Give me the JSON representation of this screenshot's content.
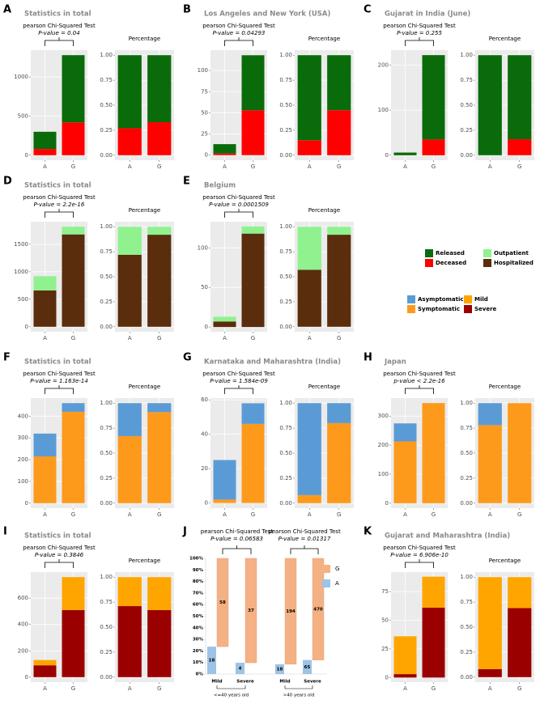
{
  "chart_data": [
    {
      "type": "bar",
      "panel": "A",
      "title": "Statistics in total",
      "test": "pearson Chi-Squared Test",
      "pvalue": "P-value = 0.04",
      "categories": [
        "A",
        "G"
      ],
      "series": [
        {
          "color": "#ff0000",
          "values": [
            80,
            420
          ]
        },
        {
          "color": "#0a6b0a",
          "values": [
            220,
            860
          ]
        }
      ],
      "ylim": [
        -64,
        1344
      ],
      "yticks": [
        0,
        500,
        1000
      ]
    },
    {
      "type": "bar",
      "title": "Percentage",
      "categories": [
        "A",
        "G"
      ],
      "series": [
        {
          "color": "#ff0000",
          "values": [
            0.27,
            0.33
          ]
        },
        {
          "color": "#0a6b0a",
          "values": [
            0.73,
            0.67
          ]
        }
      ],
      "ylim": [
        -0.05,
        1.05
      ],
      "yticks": [
        {
          "value": 0,
          "label": "0.00"
        },
        {
          "value": 0.25,
          "label": "0.25"
        },
        {
          "value": 0.5,
          "label": "0.50"
        },
        {
          "value": 0.75,
          "label": "0.75"
        },
        {
          "value": 1,
          "label": "1.00"
        }
      ]
    },
    {
      "type": "bar",
      "panel": "B",
      "title": "Los Angeles and New York (USA)",
      "test": "pearson Chi-Squared Test",
      "pvalue": "P-value = 0.04293",
      "categories": [
        "A",
        "G"
      ],
      "series": [
        {
          "color": "#ff0000",
          "values": [
            2,
            53
          ]
        },
        {
          "color": "#0a6b0a",
          "values": [
            11,
            65
          ]
        }
      ],
      "ylim": [
        -6,
        124
      ],
      "yticks": [
        0,
        25,
        50,
        75,
        100
      ]
    },
    {
      "type": "bar",
      "title": "Percentage",
      "categories": [
        "A",
        "G"
      ],
      "series": [
        {
          "color": "#ff0000",
          "values": [
            0.15,
            0.45
          ]
        },
        {
          "color": "#0a6b0a",
          "values": [
            0.85,
            0.55
          ]
        }
      ],
      "ylim": [
        -0.05,
        1.05
      ],
      "yticks": [
        {
          "value": 0,
          "label": "0.00"
        },
        {
          "value": 0.25,
          "label": "0.25"
        },
        {
          "value": 0.5,
          "label": "0.50"
        },
        {
          "value": 0.75,
          "label": "0.75"
        },
        {
          "value": 1,
          "label": "1.00"
        }
      ]
    },
    {
      "type": "bar",
      "panel": "C",
      "title": "Gujarat in India (June)",
      "test": "pearson Chi-Squared Test",
      "pvalue": "P-value = 0.255",
      "categories": [
        "A",
        "G"
      ],
      "series": [
        {
          "color": "#ff0000",
          "values": [
            0,
            35
          ]
        },
        {
          "color": "#0a6b0a",
          "values": [
            6,
            187
          ]
        }
      ],
      "ylim": [
        -11,
        233
      ],
      "yticks": [
        0,
        100,
        200
      ]
    },
    {
      "type": "bar",
      "title": "Percentage",
      "categories": [
        "A",
        "G"
      ],
      "series": [
        {
          "color": "#ff0000",
          "values": [
            0,
            0.16
          ]
        },
        {
          "color": "#0a6b0a",
          "values": [
            1,
            0.84
          ]
        }
      ],
      "ylim": [
        -0.05,
        1.05
      ],
      "yticks": [
        {
          "value": 0,
          "label": "0.00"
        },
        {
          "value": 0.25,
          "label": "0.25"
        },
        {
          "value": 0.5,
          "label": "0.50"
        },
        {
          "value": 0.75,
          "label": "0.75"
        },
        {
          "value": 1,
          "label": "1.00"
        }
      ]
    },
    {
      "type": "bar",
      "panel": "D",
      "title": "Statistics in total",
      "test": "pearson Chi-Squared Test",
      "pvalue": "P-value = 2.2e-16",
      "categories": [
        "A",
        "G"
      ],
      "series": [
        {
          "color": "#5a2d0c",
          "values": [
            660,
            1680
          ]
        },
        {
          "color": "#8ff28f",
          "values": [
            260,
            140
          ]
        }
      ],
      "ylim": [
        -91,
        1911
      ],
      "yticks": [
        0,
        500,
        1000,
        1500
      ]
    },
    {
      "type": "bar",
      "title": "Percentage",
      "categories": [
        "A",
        "G"
      ],
      "series": [
        {
          "color": "#5a2d0c",
          "values": [
            0.72,
            0.92
          ]
        },
        {
          "color": "#8ff28f",
          "values": [
            0.28,
            0.08
          ]
        }
      ],
      "ylim": [
        -0.05,
        1.05
      ],
      "yticks": [
        {
          "value": 0,
          "label": "0.00"
        },
        {
          "value": 0.25,
          "label": "0.25"
        },
        {
          "value": 0.5,
          "label": "0.50"
        },
        {
          "value": 0.75,
          "label": "0.75"
        },
        {
          "value": 1,
          "label": "1.00"
        }
      ]
    },
    {
      "type": "bar",
      "panel": "E",
      "title": "Belgium",
      "test": "pearson Chi-Squared Test",
      "pvalue": "P-value = 0.0001509",
      "categories": [
        "A",
        "G"
      ],
      "series": [
        {
          "color": "#5a2d0c",
          "values": [
            7,
            118
          ]
        },
        {
          "color": "#8ff28f",
          "values": [
            6,
            9
          ]
        }
      ],
      "ylim": [
        -6,
        133
      ],
      "yticks": [
        0,
        50,
        100
      ]
    },
    {
      "type": "bar",
      "title": "Percentage",
      "categories": [
        "A",
        "G"
      ],
      "series": [
        {
          "color": "#5a2d0c",
          "values": [
            0.57,
            0.92
          ]
        },
        {
          "color": "#8ff28f",
          "values": [
            0.43,
            0.08
          ]
        }
      ],
      "ylim": [
        -0.05,
        1.05
      ],
      "yticks": [
        {
          "value": 0,
          "label": "0.00"
        },
        {
          "value": 0.25,
          "label": "0.25"
        },
        {
          "value": 0.5,
          "label": "0.50"
        },
        {
          "value": 0.75,
          "label": "0.75"
        },
        {
          "value": 1,
          "label": "1.00"
        }
      ]
    },
    {
      "type": "bar",
      "panel": "F",
      "title": "Statistics in total",
      "test": "pearson Chi-Squared Test",
      "pvalue": "P-value = 1.163e-14",
      "categories": [
        "A",
        "G"
      ],
      "series": [
        {
          "color": "#fd9a1c",
          "values": [
            215,
            420
          ]
        },
        {
          "color": "#5b9bd5",
          "values": [
            105,
            40
          ]
        }
      ],
      "ylim": [
        -23,
        483
      ],
      "yticks": [
        0,
        100,
        200,
        300,
        400
      ]
    },
    {
      "type": "bar",
      "title": "Percentage",
      "categories": [
        "A",
        "G"
      ],
      "series": [
        {
          "color": "#fd9a1c",
          "values": [
            0.67,
            0.91
          ]
        },
        {
          "color": "#5b9bd5",
          "values": [
            0.33,
            0.09
          ]
        }
      ],
      "ylim": [
        -0.05,
        1.05
      ],
      "yticks": [
        {
          "value": 0,
          "label": "0.00"
        },
        {
          "value": 0.25,
          "label": "0.25"
        },
        {
          "value": 0.5,
          "label": "0.50"
        },
        {
          "value": 0.75,
          "label": "0.75"
        },
        {
          "value": 1,
          "label": "1.00"
        }
      ]
    },
    {
      "type": "bar",
      "panel": "G",
      "title": "Karnataka and Maharashtra (India)",
      "test": "pearson Chi-Squared Test",
      "pvalue": "P-value = 1.584e-09",
      "categories": [
        "A",
        "G"
      ],
      "series": [
        {
          "color": "#fd9a1c",
          "values": [
            2,
            46
          ]
        },
        {
          "color": "#5b9bd5",
          "values": [
            23,
            12
          ]
        }
      ],
      "ylim": [
        -3,
        61
      ],
      "yticks": [
        0,
        20,
        40,
        60
      ]
    },
    {
      "type": "bar",
      "title": "Percentage",
      "categories": [
        "A",
        "G"
      ],
      "series": [
        {
          "color": "#fd9a1c",
          "values": [
            0.08,
            0.8
          ]
        },
        {
          "color": "#5b9bd5",
          "values": [
            0.92,
            0.2
          ]
        }
      ],
      "ylim": [
        -0.05,
        1.05
      ],
      "yticks": [
        {
          "value": 0,
          "label": "0.00"
        },
        {
          "value": 0.25,
          "label": "0.25"
        },
        {
          "value": 0.5,
          "label": "0.50"
        },
        {
          "value": 0.75,
          "label": "0.75"
        },
        {
          "value": 1,
          "label": "1.00"
        }
      ]
    },
    {
      "type": "bar",
      "panel": "H",
      "title": "Japan",
      "test": "pearson Chi-Squared Test",
      "pvalue": "p-value < 2.2e-16",
      "categories": [
        "A",
        "G"
      ],
      "series": [
        {
          "color": "#fd9a1c",
          "values": [
            213,
            345
          ]
        },
        {
          "color": "#5b9bd5",
          "values": [
            62,
            0
          ]
        }
      ],
      "ylim": [
        -17,
        362
      ],
      "yticks": [
        0,
        100,
        200,
        300
      ]
    },
    {
      "type": "bar",
      "title": "Percentage",
      "categories": [
        "A",
        "G"
      ],
      "series": [
        {
          "color": "#fd9a1c",
          "values": [
            0.78,
            1
          ]
        },
        {
          "color": "#5b9bd5",
          "values": [
            0.22,
            0
          ]
        }
      ],
      "ylim": [
        -0.05,
        1.05
      ],
      "yticks": [
        {
          "value": 0,
          "label": "0.00"
        },
        {
          "value": 0.25,
          "label": "0.25"
        },
        {
          "value": 0.5,
          "label": "0.50"
        },
        {
          "value": 0.75,
          "label": "0.75"
        },
        {
          "value": 1,
          "label": "1.00"
        }
      ]
    },
    {
      "type": "bar",
      "panel": "I",
      "title": "Statistics in total",
      "test": "pearson Chi-Squared Test",
      "pvalue": "P-value = 0.3846",
      "categories": [
        "A",
        "G"
      ],
      "series": [
        {
          "color": "#9b0000",
          "values": [
            90,
            510
          ]
        },
        {
          "color": "#ffa500",
          "values": [
            40,
            250
          ]
        }
      ],
      "ylim": [
        -38,
        798
      ],
      "yticks": [
        0,
        200,
        400,
        600
      ]
    },
    {
      "type": "bar",
      "title": "Percentage",
      "categories": [
        "A",
        "G"
      ],
      "series": [
        {
          "color": "#9b0000",
          "values": [
            0.71,
            0.67
          ]
        },
        {
          "color": "#ffa500",
          "values": [
            0.29,
            0.33
          ]
        }
      ],
      "ylim": [
        -0.05,
        1.05
      ],
      "yticks": [
        {
          "value": 0,
          "label": "0.00"
        },
        {
          "value": 0.25,
          "label": "0.25"
        },
        {
          "value": 0.5,
          "label": "0.50"
        },
        {
          "value": 0.75,
          "label": "0.75"
        },
        {
          "value": 1,
          "label": "1.00"
        }
      ]
    },
    {
      "type": "bar",
      "panel": "J",
      "stacking": "percent",
      "tests": [
        {
          "test": "pearson Chi-Squared Test",
          "pvalue": "P-value = 0.06583"
        },
        {
          "test": "pearson Chi-Squared Test",
          "pvalue": "P-value = 0.01317"
        }
      ],
      "categories": [
        "Mild",
        "Severe",
        "Mild",
        "Severe"
      ],
      "groups": [
        "<=40 years old",
        ">40 years old"
      ],
      "series": [
        {
          "name": "A",
          "color": "#9dc3e6",
          "values": [
            18,
            4,
            18,
            65
          ]
        },
        {
          "name": "G",
          "color": "#f4b183",
          "values": [
            58,
            37,
            194,
            470
          ]
        }
      ],
      "ylim": [
        0,
        100
      ],
      "yticks": [
        {
          "value": 0,
          "label": "0%"
        },
        {
          "value": 10,
          "label": "10%"
        },
        {
          "value": 20,
          "label": "20%"
        },
        {
          "value": 30,
          "label": "30%"
        },
        {
          "value": 40,
          "label": "40%"
        },
        {
          "value": 50,
          "label": "50%"
        },
        {
          "value": 60,
          "label": "60%"
        },
        {
          "value": 70,
          "label": "70%"
        },
        {
          "value": 80,
          "label": "80%"
        },
        {
          "value": 90,
          "label": "90%"
        },
        {
          "value": 100,
          "label": "100%"
        }
      ]
    },
    {
      "type": "bar",
      "panel": "K",
      "title": "Gujarat and Maharashtra (India)",
      "test": "pearson Chi-Squared Test",
      "pvalue": "P-value = 6.906e-10",
      "categories": [
        "A",
        "G"
      ],
      "series": [
        {
          "color": "#9b0000",
          "values": [
            3,
            61
          ]
        },
        {
          "color": "#ffa500",
          "values": [
            33,
            27
          ]
        }
      ],
      "ylim": [
        -4,
        92
      ],
      "yticks": [
        0,
        25,
        50,
        75
      ]
    },
    {
      "type": "bar",
      "title": "Percentage",
      "categories": [
        "A",
        "G"
      ],
      "series": [
        {
          "color": "#9b0000",
          "values": [
            0.08,
            0.69
          ]
        },
        {
          "color": "#ffa500",
          "values": [
            0.92,
            0.31
          ]
        }
      ],
      "ylim": [
        -0.05,
        1.05
      ],
      "yticks": [
        {
          "value": 0,
          "label": "0.00"
        },
        {
          "value": 0.25,
          "label": "0.25"
        },
        {
          "value": 0.5,
          "label": "0.50"
        },
        {
          "value": 0.75,
          "label": "0.75"
        },
        {
          "value": 1,
          "label": "1.00"
        }
      ]
    }
  ],
  "legends": [
    {
      "entries": [
        {
          "name": "Released",
          "color": "#0a6b0a"
        },
        {
          "name": "Deceased",
          "color": "#ff0000"
        }
      ]
    },
    {
      "entries": [
        {
          "name": "Outpatient",
          "color": "#8ff28f"
        },
        {
          "name": "Hospitalized",
          "color": "#5a2d0c"
        }
      ]
    },
    {
      "entries": [
        {
          "name": "Asymptomatic",
          "color": "#5b9bd5"
        },
        {
          "name": "Symptomatic",
          "color": "#fd9a1c"
        }
      ]
    },
    {
      "entries": [
        {
          "name": "Mild",
          "color": "#ffa500"
        },
        {
          "name": "Severe",
          "color": "#9b0000"
        }
      ]
    }
  ]
}
